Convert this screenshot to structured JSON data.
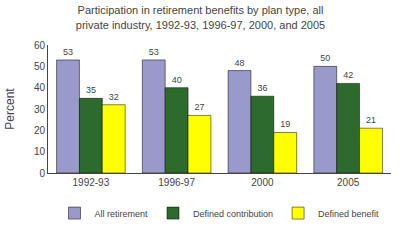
{
  "chart_data": {
    "type": "bar",
    "title": "Participation in retirement benefits by plan type, all\nprivate industry, 1992-93, 1996-97, 2000, and 2005",
    "categories": [
      "1992-93",
      "1996-97",
      "2000",
      "2005"
    ],
    "series": [
      {
        "name": "All retirement",
        "color": "#9999cc",
        "values": [
          53,
          53,
          48,
          50
        ]
      },
      {
        "name": "Defined contribution",
        "color": "#2d6a2d",
        "values": [
          35,
          40,
          36,
          42
        ]
      },
      {
        "name": "Defined benefit",
        "color": "#ffff00",
        "values": [
          32,
          27,
          19,
          21
        ]
      }
    ],
    "ylabel": "Percent",
    "ylim": [
      0,
      60
    ],
    "yticks": [
      0,
      10,
      20,
      30,
      40,
      50,
      60
    ],
    "data_labels": true,
    "grid": false,
    "legend": "bottom"
  }
}
